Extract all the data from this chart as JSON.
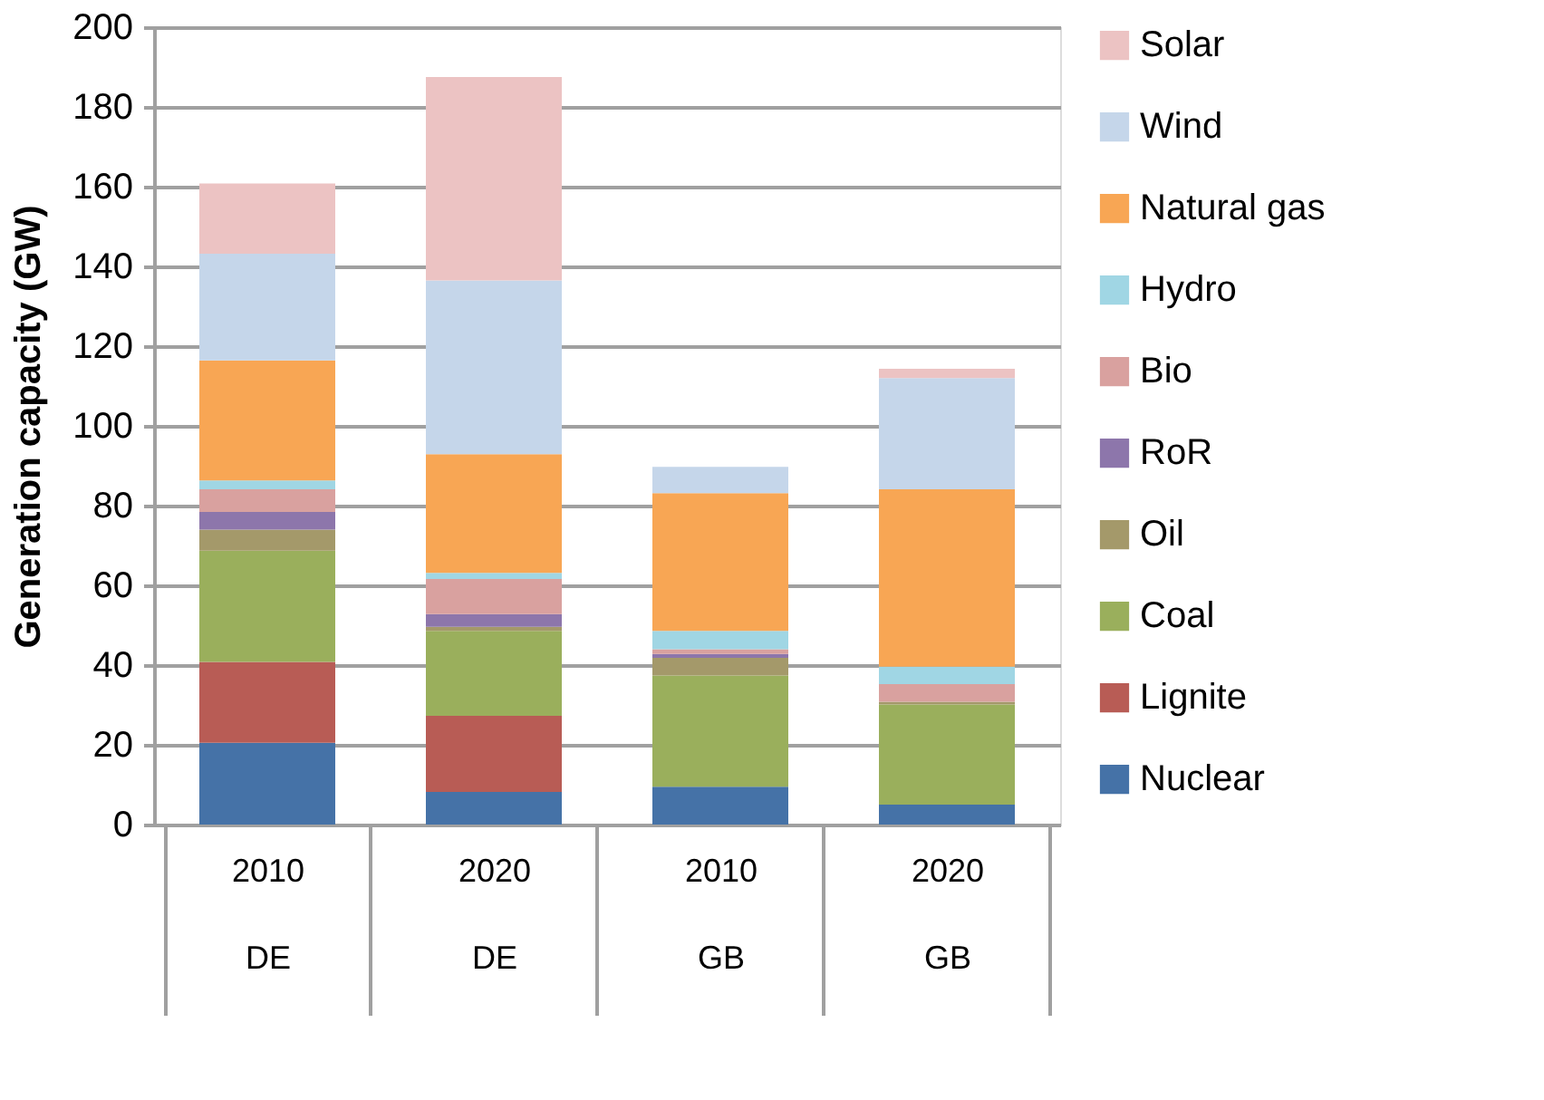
{
  "chart_data": {
    "type": "bar",
    "stacked": true,
    "ylabel": "Generation capacity (GW)",
    "categories": [
      "2010\nDE",
      "2020\nDE",
      "2010\nGB",
      "2020\nGB"
    ],
    "ylim": [
      0,
      200
    ],
    "yticks": [
      0,
      20,
      40,
      60,
      80,
      100,
      120,
      140,
      160,
      180,
      200
    ],
    "grid": "y",
    "legend": "right",
    "series": [
      {
        "name": "Nuclear",
        "color": "#4572a7",
        "values": [
          20.5,
          8.2,
          9.5,
          5.0
        ]
      },
      {
        "name": "Lignite",
        "color": "#b85c55",
        "values": [
          20.3,
          19.1,
          0,
          0
        ]
      },
      {
        "name": "Coal",
        "color": "#9aaf5c",
        "values": [
          27.9,
          21.3,
          27.9,
          25.1
        ]
      },
      {
        "name": "Oil",
        "color": "#a4996a",
        "values": [
          5.3,
          1.0,
          4.4,
          0.7
        ]
      },
      {
        "name": "RoR",
        "color": "#8d76ab",
        "values": [
          4.4,
          3.2,
          1.0,
          0
        ]
      },
      {
        "name": "Bio",
        "color": "#d9a19f",
        "values": [
          5.7,
          8.8,
          1.2,
          4.4
        ]
      },
      {
        "name": "Hydro",
        "color": "#a0d6e4",
        "values": [
          2.2,
          1.5,
          4.6,
          4.4
        ]
      },
      {
        "name": "Natural gas",
        "color": "#f8a654",
        "values": [
          30.1,
          29.8,
          34.5,
          44.5
        ]
      },
      {
        "name": "Wind",
        "color": "#c5d6ea",
        "values": [
          26.8,
          43.6,
          6.6,
          27.9
        ]
      },
      {
        "name": "Solar",
        "color": "#ecc3c3",
        "values": [
          17.6,
          51.0,
          0,
          2.3
        ]
      }
    ]
  }
}
